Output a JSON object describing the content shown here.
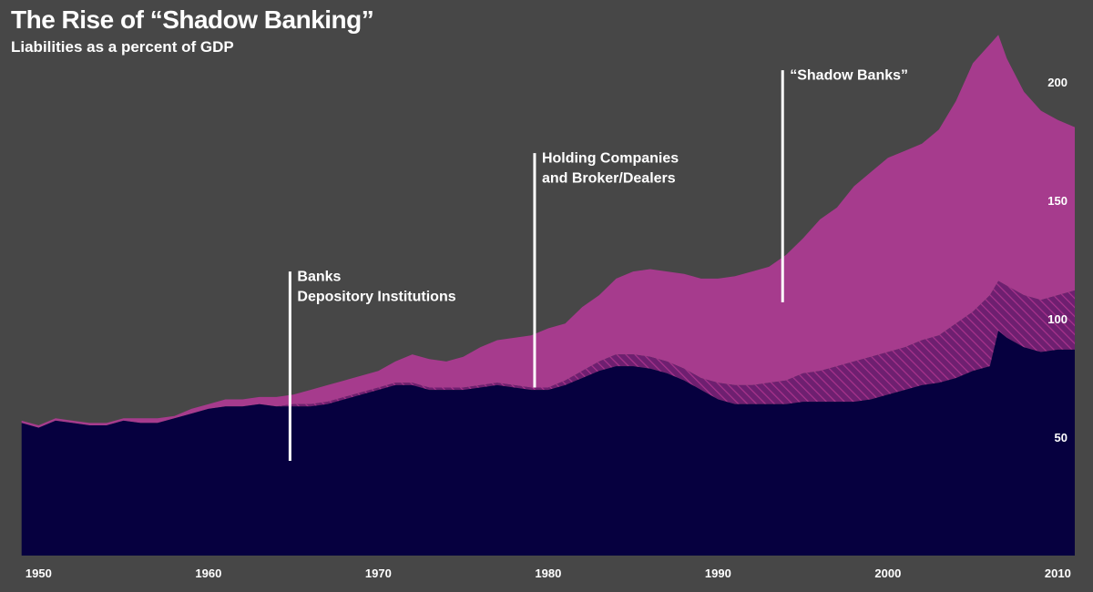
{
  "chart_data": {
    "type": "area",
    "title": "The Rise of “Shadow Banking”",
    "subtitle": "Liabilities as a percent of GDP",
    "xlabel": "",
    "ylabel": "",
    "xlim": [
      1948.8,
      2011
    ],
    "ylim": [
      0,
      227
    ],
    "grid": false,
    "x_ticks": [
      1950,
      1960,
      1970,
      1980,
      1990,
      2000,
      2010
    ],
    "x_tick_labels": [
      "1950",
      "1960",
      "1970",
      "1980",
      "1990",
      "2000",
      "2010"
    ],
    "y_ticks": [
      50,
      100,
      150,
      200
    ],
    "y_tick_labels": [
      "50",
      "100",
      "150",
      "200"
    ],
    "colors": {
      "background": "#474747",
      "banks": "#06003f",
      "holding": "#6e1f70",
      "hatch": "#a8338c",
      "shadow": "#a63b8d",
      "text": "#ffffff"
    },
    "x": [
      1949,
      1950,
      1951,
      1952,
      1953,
      1954,
      1955,
      1956,
      1957,
      1958,
      1959,
      1960,
      1961,
      1962,
      1963,
      1964,
      1965,
      1966,
      1967,
      1968,
      1969,
      1970,
      1971,
      1972,
      1973,
      1974,
      1975,
      1976,
      1977,
      1978,
      1979,
      1980,
      1981,
      1982,
      1983,
      1984,
      1985,
      1986,
      1987,
      1988,
      1989,
      1990,
      1991,
      1992,
      1993,
      1994,
      1995,
      1996,
      1997,
      1998,
      1999,
      2000,
      2001,
      2002,
      2003,
      2004,
      2005,
      2006,
      2006.5,
      2007,
      2008,
      2009,
      2010,
      2011
    ],
    "series": [
      {
        "key": "banks",
        "values": [
          56,
          54,
          57,
          56,
          55,
          55,
          57,
          56,
          56,
          58,
          60,
          62,
          63,
          63,
          64,
          63,
          63,
          63,
          64,
          66,
          68,
          70,
          72,
          72,
          70,
          70,
          70,
          71,
          72,
          71,
          70,
          70,
          72,
          75,
          78,
          80,
          80,
          79,
          77,
          74,
          70,
          66,
          64,
          64,
          64,
          64,
          65,
          65,
          65,
          65,
          66,
          68,
          70,
          72,
          73,
          75,
          78,
          80,
          95,
          92,
          88,
          86,
          87,
          87
        ]
      },
      {
        "key": "holding",
        "values": [
          56,
          54,
          57,
          56,
          55,
          55,
          57,
          56,
          56,
          58,
          60,
          62,
          63,
          63,
          64,
          63,
          64,
          64,
          65,
          67,
          69,
          71,
          73,
          73,
          71,
          71,
          71,
          72,
          73,
          72,
          71,
          71,
          74,
          78,
          82,
          85,
          85,
          84,
          82,
          79,
          75,
          73,
          72,
          72,
          73,
          74,
          77,
          78,
          80,
          82,
          84,
          86,
          88,
          91,
          93,
          98,
          103,
          110,
          116,
          114,
          110,
          108,
          110,
          112
        ]
      },
      {
        "key": "shadow",
        "values": [
          57,
          55,
          58,
          57,
          56,
          56,
          58,
          58,
          58,
          59,
          62,
          64,
          66,
          66,
          67,
          67,
          68,
          70,
          72,
          74,
          76,
          78,
          82,
          85,
          83,
          82,
          84,
          88,
          91,
          92,
          93,
          96,
          98,
          105,
          110,
          117,
          120,
          121,
          120,
          119,
          117,
          117,
          118,
          120,
          122,
          127,
          134,
          142,
          147,
          156,
          162,
          168,
          171,
          174,
          180,
          192,
          208,
          216,
          220,
          210,
          196,
          188,
          184,
          181
        ]
      }
    ],
    "annotations": [
      {
        "x": 1964.8,
        "text_lines": [
          "Banks",
          "Depository Institutions"
        ],
        "line_top": 120,
        "line_bottom": 40,
        "label_y": 116
      },
      {
        "x": 1979.2,
        "text_lines": [
          "Holding Companies",
          "and Broker/Dealers"
        ],
        "line_top": 170,
        "line_bottom": 71,
        "label_y": 166
      },
      {
        "x": 1993.8,
        "text_lines": [
          "“Shadow Banks”"
        ],
        "line_top": 205,
        "line_bottom": 107,
        "label_y": 201
      }
    ]
  }
}
